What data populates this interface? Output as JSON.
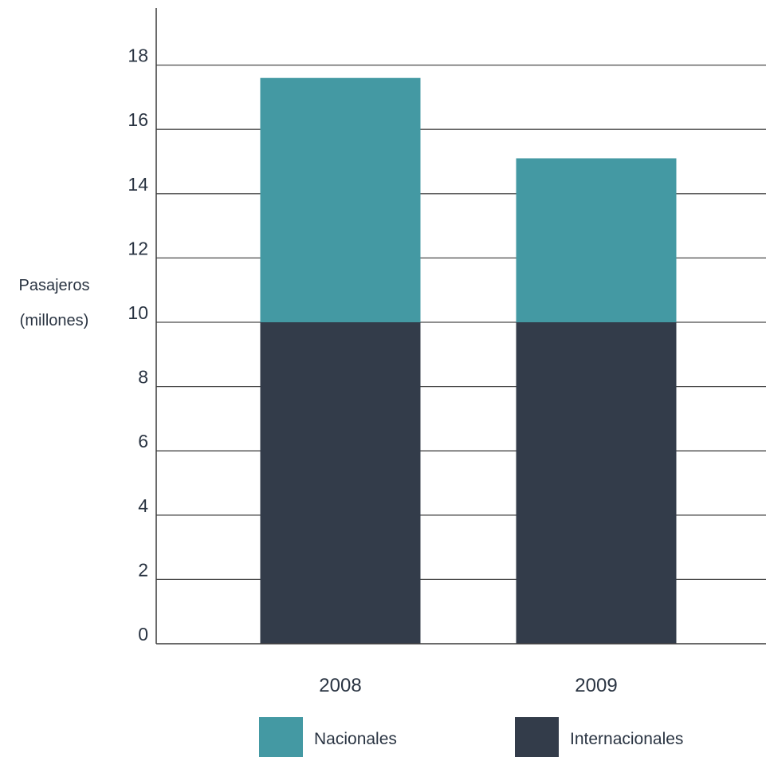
{
  "chart_data": {
    "type": "bar",
    "stacked": true,
    "categories": [
      "2008",
      "2009"
    ],
    "series": [
      {
        "name": "Internacionales",
        "values": [
          10,
          10
        ],
        "color": "#333c4a"
      },
      {
        "name": "Nacionales",
        "values": [
          7.6,
          5.1
        ],
        "color": "#4499a3"
      }
    ],
    "ylabel_lines": [
      "Pasajeros",
      "(millones)"
    ],
    "yticks": [
      0,
      2,
      4,
      6,
      8,
      10,
      12,
      14,
      16,
      18
    ],
    "ylim": [
      0,
      19
    ],
    "grid": true,
    "legend_position": "bottom",
    "legend_order": [
      "Nacionales",
      "Internacionales"
    ]
  }
}
